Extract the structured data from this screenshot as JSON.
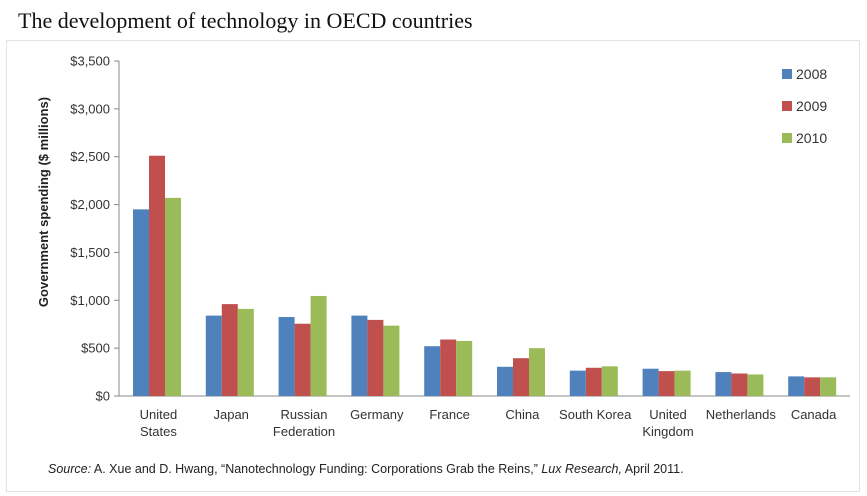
{
  "page": {
    "title": "The development of technology in OECD countries"
  },
  "chart_data": {
    "type": "bar",
    "title": "",
    "xlabel": "",
    "ylabel": "Government spending ($ millions)",
    "ylim": [
      0,
      3500
    ],
    "yticks": [
      "$0",
      "$500",
      "$1,000",
      "$1,500",
      "$2,000",
      "$2,500",
      "$3,000",
      "$3,500"
    ],
    "ytick_values": [
      0,
      500,
      1000,
      1500,
      2000,
      2500,
      3000,
      3500
    ],
    "grid": false,
    "legend_position": "top-right",
    "categories": [
      [
        "United",
        "States"
      ],
      [
        "Japan"
      ],
      [
        "Russian",
        "Federation"
      ],
      [
        "Germany"
      ],
      [
        "France"
      ],
      [
        "China"
      ],
      [
        "South Korea"
      ],
      [
        "United",
        "Kingdom"
      ],
      [
        "Netherlands"
      ],
      [
        "Canada"
      ]
    ],
    "series": [
      {
        "name": "2008",
        "color": "#4f81bd",
        "values": [
          1950,
          840,
          825,
          840,
          520,
          305,
          265,
          285,
          250,
          205
        ]
      },
      {
        "name": "2009",
        "color": "#c0504d",
        "values": [
          2510,
          960,
          755,
          795,
          590,
          395,
          295,
          260,
          235,
          195
        ]
      },
      {
        "name": "2010",
        "color": "#9bbb59",
        "values": [
          2070,
          910,
          1045,
          735,
          575,
          500,
          310,
          265,
          225,
          195
        ]
      }
    ]
  },
  "source": {
    "label": "Source:",
    "authors": " A. Xue and D. Hwang, “Nanotechnology Funding: Corporations Grab the Reins,” ",
    "publication": "Lux Research,",
    "date": " April 2011."
  }
}
